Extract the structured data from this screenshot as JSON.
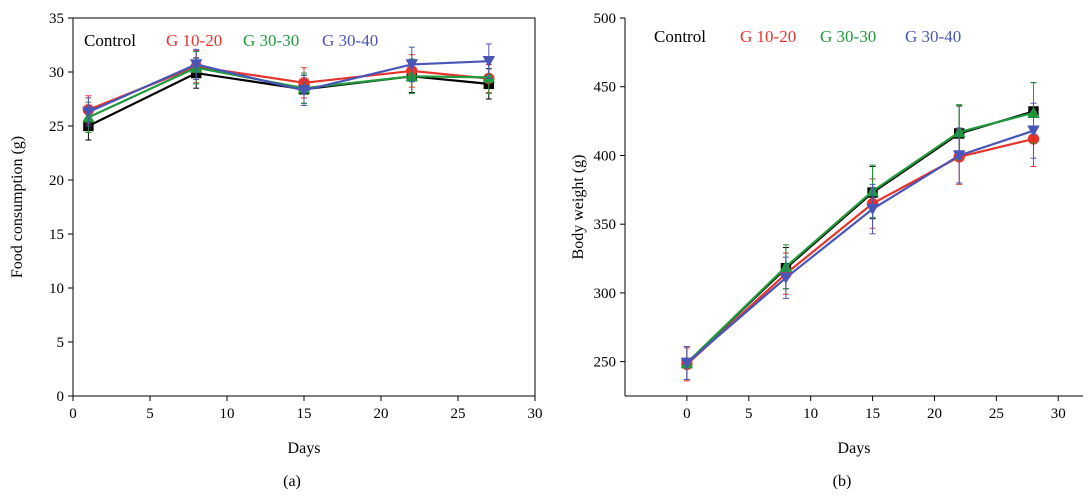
{
  "chart_data": [
    {
      "type": "line",
      "panel_label": "(a)",
      "xlabel": "Days",
      "ylabel": "Food consumption (g)",
      "xlim": [
        0,
        30
      ],
      "ylim": [
        0,
        35
      ],
      "xticks": [
        0,
        5,
        10,
        15,
        20,
        25,
        30
      ],
      "yticks": [
        0,
        5,
        10,
        15,
        20,
        25,
        30,
        35
      ],
      "x": [
        1,
        8,
        15,
        22,
        27
      ],
      "legend_position": "top-left",
      "grid": false,
      "series": [
        {
          "name": "Control",
          "color": "#000000",
          "marker": "square",
          "values": [
            25.0,
            29.9,
            28.4,
            29.6,
            28.9
          ],
          "error": [
            1.3,
            1.4,
            1.3,
            1.5,
            1.4
          ]
        },
        {
          "name": "G 10-20",
          "color": "#e8332b",
          "marker": "circle",
          "values": [
            26.5,
            30.5,
            29.0,
            30.1,
            29.4
          ],
          "error": [
            1.3,
            1.5,
            1.4,
            1.5,
            1.3
          ]
        },
        {
          "name": "G 30-30",
          "color": "#1f9a3c",
          "marker": "triangle",
          "values": [
            25.8,
            30.4,
            28.5,
            29.6,
            29.5
          ],
          "error": [
            1.4,
            1.5,
            1.4,
            1.6,
            1.5
          ]
        },
        {
          "name": "G 30-40",
          "color": "#4a55b8",
          "marker": "triangle-down",
          "values": [
            26.3,
            30.7,
            28.3,
            30.7,
            31.0
          ],
          "error": [
            1.3,
            1.4,
            1.4,
            1.6,
            1.6
          ]
        }
      ]
    },
    {
      "type": "line",
      "panel_label": "(b)",
      "xlabel": "Days",
      "ylabel": "Body weight (g)",
      "xlim": [
        -5,
        32
      ],
      "ylim": [
        225,
        500
      ],
      "xticks": [
        0,
        5,
        10,
        15,
        20,
        25,
        30
      ],
      "yticks": [
        250,
        300,
        350,
        400,
        450,
        500
      ],
      "x": [
        0,
        8,
        15,
        22,
        28
      ],
      "legend_position": "top-left",
      "grid": false,
      "series": [
        {
          "name": "Control",
          "color": "#000000",
          "marker": "square",
          "values": [
            249,
            318,
            373,
            416,
            432
          ],
          "error": [
            12,
            15,
            19,
            20,
            21
          ]
        },
        {
          "name": "G 10-20",
          "color": "#e8332b",
          "marker": "circle",
          "values": [
            248,
            314,
            365,
            399,
            412
          ],
          "error": [
            12,
            15,
            18,
            20,
            20
          ]
        },
        {
          "name": "G 30-30",
          "color": "#1f9a3c",
          "marker": "triangle",
          "values": [
            249,
            319,
            374,
            417,
            431
          ],
          "error": [
            12,
            16,
            19,
            20,
            22
          ]
        },
        {
          "name": "G 30-40",
          "color": "#4a55b8",
          "marker": "triangle-down",
          "values": [
            249,
            311,
            361,
            400,
            418
          ],
          "error": [
            12,
            15,
            18,
            20,
            20
          ]
        }
      ]
    }
  ]
}
